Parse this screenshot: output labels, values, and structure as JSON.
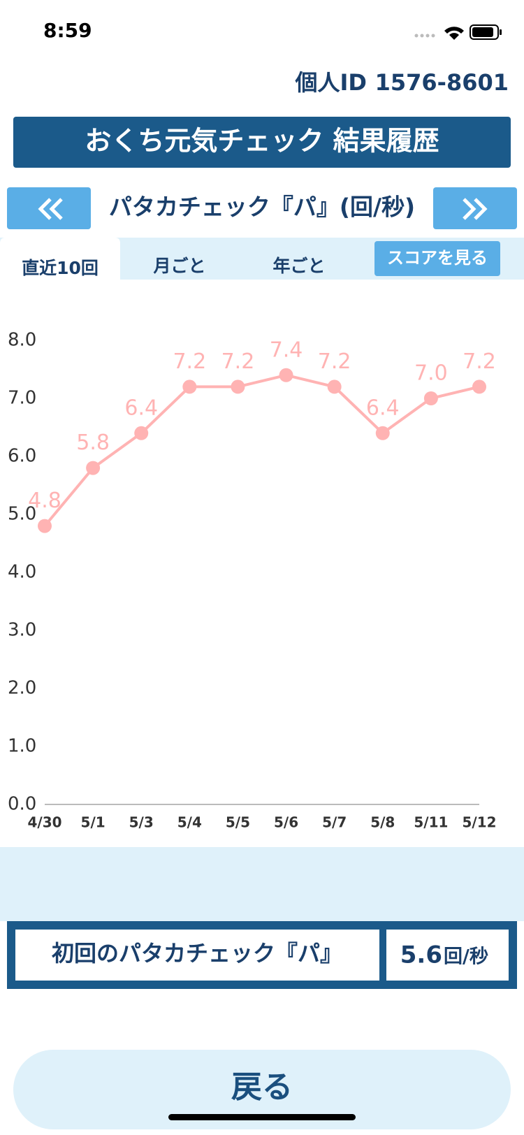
{
  "status_bar": {
    "time": "8:59"
  },
  "header": {
    "id_label": "個人ID",
    "id_value": "1576-8601",
    "title": "おくち元気チェック 結果履歴"
  },
  "nav": {
    "label": "パタカチェック『パ』(回/秒)"
  },
  "tabs": [
    "直近10回",
    "月ごと",
    "年ごと"
  ],
  "score_button": "スコアを見る",
  "chart_data": {
    "type": "line",
    "categories": [
      "4/30",
      "5/1",
      "5/3",
      "5/4",
      "5/5",
      "5/6",
      "5/7",
      "5/8",
      "5/11",
      "5/12"
    ],
    "values": [
      4.8,
      5.8,
      6.4,
      7.2,
      7.2,
      7.4,
      7.2,
      6.4,
      7.0,
      7.2
    ],
    "value_labels": [
      "4.8",
      "5.8",
      "6.4",
      "7.2",
      "7.2",
      "7.4",
      "7.2",
      "6.4",
      "7.0",
      "7.2"
    ],
    "color": "#ffb3b3",
    "ylim": [
      0,
      8
    ],
    "yticks": [
      {
        "value": 0,
        "label": "0.0"
      },
      {
        "value": 1,
        "label": "1.0"
      },
      {
        "value": 2,
        "label": "2.0"
      },
      {
        "value": 3,
        "label": "3.0"
      },
      {
        "value": 4,
        "label": "4.0"
      },
      {
        "value": 5,
        "label": "5.0"
      },
      {
        "value": 6,
        "label": "6.0"
      },
      {
        "value": 7,
        "label": "7.0"
      },
      {
        "value": 8,
        "label": "8.0"
      }
    ]
  },
  "summary": {
    "label": "初回のパタカチェック『パ』",
    "value": 5.6,
    "unit": "回/秒"
  },
  "back_button": "戻る"
}
